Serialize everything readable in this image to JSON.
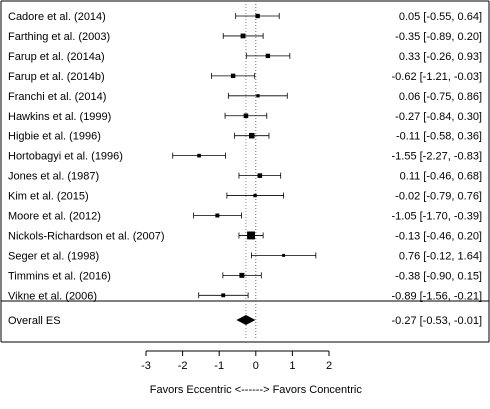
{
  "chart_data": {
    "type": "forest",
    "title": "",
    "xlabel": "Favors Eccentric <------> Favors Concentric",
    "xlim": [
      -3,
      2
    ],
    "xticks": [
      "-3",
      "-2",
      "-1",
      "0",
      "1",
      "2"
    ],
    "reference_line": 0,
    "studies": [
      {
        "name": "Cadore et al. (2014)",
        "es": 0.05,
        "lo": -0.55,
        "hi": 0.64,
        "label": "0.05 [-0.55,  0.64]"
      },
      {
        "name": "Farthing et al. (2003)",
        "es": -0.35,
        "lo": -0.89,
        "hi": 0.2,
        "label": "-0.35 [-0.89,  0.20]"
      },
      {
        "name": "Farup et al. (2014a)",
        "es": 0.33,
        "lo": -0.26,
        "hi": 0.93,
        "label": "0.33 [-0.26,  0.93]"
      },
      {
        "name": "Farup et al. (2014b)",
        "es": -0.62,
        "lo": -1.21,
        "hi": -0.03,
        "label": "-0.62 [-1.21, -0.03]"
      },
      {
        "name": "Franchi et al. (2014)",
        "es": 0.06,
        "lo": -0.75,
        "hi": 0.86,
        "label": "0.06 [-0.75,  0.86]"
      },
      {
        "name": "Hawkins et al. (1999)",
        "es": -0.27,
        "lo": -0.84,
        "hi": 0.3,
        "label": "-0.27 [-0.84,  0.30]"
      },
      {
        "name": "Higbie et al. (1996)",
        "es": -0.11,
        "lo": -0.58,
        "hi": 0.36,
        "label": "-0.11 [-0.58,  0.36]"
      },
      {
        "name": "Hortobagyi et al. (1996)",
        "es": -1.55,
        "lo": -2.27,
        "hi": -0.83,
        "label": "-1.55 [-2.27, -0.83]"
      },
      {
        "name": "Jones et al. (1987)",
        "es": 0.11,
        "lo": -0.46,
        "hi": 0.68,
        "label": "0.11 [-0.46,  0.68]"
      },
      {
        "name": "Kim et al. (2015)",
        "es": -0.02,
        "lo": -0.79,
        "hi": 0.76,
        "label": "-0.02 [-0.79,  0.76]"
      },
      {
        "name": "Moore et al. (2012)",
        "es": -1.05,
        "lo": -1.7,
        "hi": -0.39,
        "label": "-1.05 [-1.70, -0.39]"
      },
      {
        "name": "Nickols-Richardson et al. (2007)",
        "es": -0.13,
        "lo": -0.46,
        "hi": 0.2,
        "label": "-0.13 [-0.46,  0.20]"
      },
      {
        "name": "Seger et al. (1998)",
        "es": 0.76,
        "lo": -0.12,
        "hi": 1.64,
        "label": "0.76 [-0.12,  1.64]"
      },
      {
        "name": "Timmins et al. (2016)",
        "es": -0.38,
        "lo": -0.9,
        "hi": 0.15,
        "label": "-0.38 [-0.90,  0.15]"
      },
      {
        "name": "Vikne et al. (2006)",
        "es": -0.89,
        "lo": -1.56,
        "hi": -0.21,
        "label": "-0.89 [-1.56, -0.21]"
      }
    ],
    "overall": {
      "name": "Overall ES",
      "es": -0.27,
      "lo": -0.53,
      "hi": -0.01,
      "label": "-0.27 [-0.53, -0.01]"
    }
  }
}
